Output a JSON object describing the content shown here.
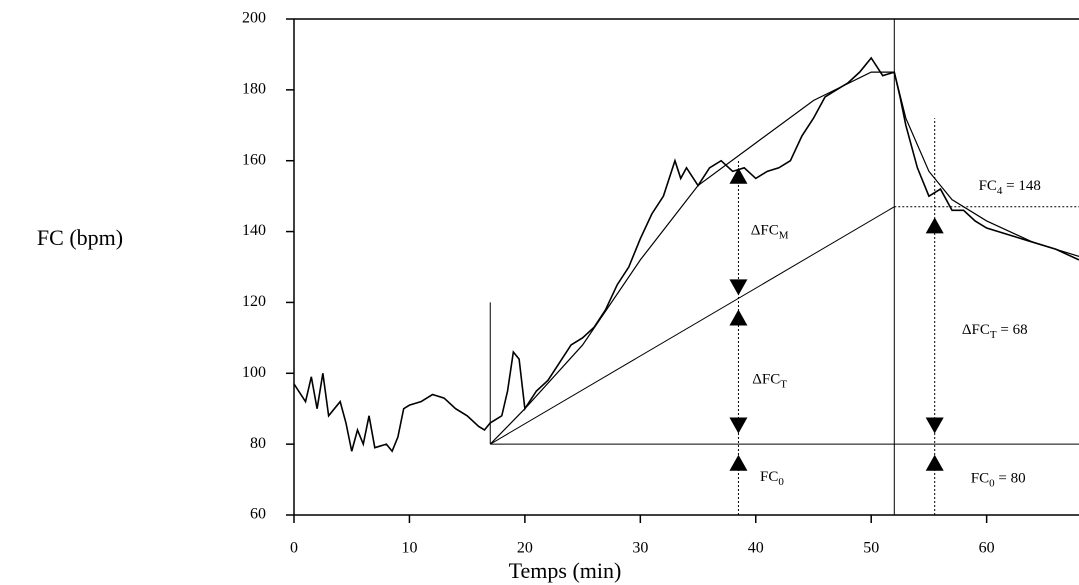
{
  "chart_data": {
    "type": "line",
    "xlabel": "Temps (min)",
    "ylabel": "FC (bpm)",
    "xlim": [
      0,
      68
    ],
    "xticks": [
      0,
      10,
      20,
      30,
      40,
      50,
      60
    ],
    "ylim": [
      60,
      200
    ],
    "yticks": [
      60,
      80,
      100,
      120,
      140,
      160,
      180,
      200
    ],
    "grid": false,
    "series": [
      {
        "name": "FC",
        "color": "#000000",
        "x": [
          0,
          1,
          1.5,
          2,
          2.5,
          3,
          4,
          4.5,
          5,
          5.5,
          6,
          6.5,
          7,
          8,
          8.5,
          9,
          9.5,
          10,
          11,
          12,
          13,
          14,
          15,
          16,
          16.5,
          17,
          18,
          18.5,
          19,
          19.5,
          20,
          21,
          22,
          23,
          24,
          25,
          26,
          27,
          28,
          29,
          30,
          31,
          32,
          33,
          33.5,
          34,
          35,
          36,
          37,
          38,
          39,
          40,
          41,
          42,
          43,
          44,
          45,
          46,
          47,
          48,
          49,
          50,
          51,
          52,
          52.5,
          53,
          54,
          55,
          56,
          57,
          58,
          59,
          60,
          62,
          64,
          66,
          68
        ],
        "values": [
          97,
          92,
          99,
          90,
          100,
          88,
          92,
          86,
          78,
          84,
          80,
          88,
          79,
          80,
          78,
          82,
          90,
          91,
          92,
          94,
          93,
          90,
          88,
          85,
          84,
          86,
          88,
          95,
          106,
          104,
          90,
          95,
          98,
          103,
          108,
          110,
          113,
          118,
          125,
          130,
          138,
          145,
          150,
          160,
          155,
          158,
          153,
          158,
          160,
          157,
          158,
          155,
          157,
          158,
          160,
          167,
          172,
          178,
          180,
          182,
          185,
          189,
          184,
          185,
          178,
          170,
          158,
          150,
          152,
          146,
          146,
          143,
          141,
          139,
          137,
          135,
          132
        ]
      },
      {
        "name": "fit",
        "color": "#000000",
        "x": [
          17,
          20,
          25,
          30,
          35,
          40,
          45,
          50,
          52,
          53,
          55,
          57,
          60,
          64,
          68
        ],
        "values": [
          80,
          90,
          108,
          132,
          153,
          165,
          177,
          185,
          185,
          172,
          157,
          149,
          143,
          137,
          133
        ]
      }
    ],
    "lines": [
      {
        "x": [
          17,
          52
        ],
        "y": [
          80,
          147
        ],
        "dash": false
      },
      {
        "x": [
          17,
          68
        ],
        "y": [
          80,
          80
        ],
        "dash": false
      },
      {
        "x": [
          52,
          68
        ],
        "y": [
          147,
          147
        ],
        "dash": true
      },
      {
        "x": [
          17,
          17
        ],
        "y": [
          80,
          120
        ],
        "dash": false
      },
      {
        "x": [
          52,
          52
        ],
        "y": [
          60,
          200
        ],
        "dash": false
      },
      {
        "x": [
          38.5,
          38.5
        ],
        "y": [
          60,
          160
        ],
        "dash": true
      },
      {
        "x": [
          55.5,
          55.5
        ],
        "y": [
          60,
          172
        ],
        "dash": true
      }
    ],
    "markers": [
      {
        "x": 38.5,
        "y": 158,
        "dir": "up"
      },
      {
        "x": 38.5,
        "y": 122,
        "dir": "down"
      },
      {
        "x": 38.5,
        "y": 118,
        "dir": "up"
      },
      {
        "x": 38.5,
        "y": 83,
        "dir": "down"
      },
      {
        "x": 38.5,
        "y": 77,
        "dir": "up"
      },
      {
        "x": 55.5,
        "y": 144,
        "dir": "up"
      },
      {
        "x": 55.5,
        "y": 83,
        "dir": "down"
      },
      {
        "x": 55.5,
        "y": 77,
        "dir": "up"
      }
    ],
    "annotations": [
      {
        "x": 41.2,
        "y": 140,
        "parts": [
          {
            "text": "ΔFC"
          },
          {
            "text": "M",
            "sub": true
          }
        ]
      },
      {
        "x": 41.2,
        "y": 98,
        "parts": [
          {
            "text": "ΔFC"
          },
          {
            "text": "T",
            "sub": true
          }
        ]
      },
      {
        "x": 41.4,
        "y": 70.4,
        "parts": [
          {
            "text": "FC"
          },
          {
            "text": "0",
            "sub": true
          }
        ]
      },
      {
        "x": 62,
        "y": 152.6,
        "parts": [
          {
            "text": "FC"
          },
          {
            "text": "4",
            "sub": true
          },
          {
            "text": " = 148"
          }
        ]
      },
      {
        "x": 60.7,
        "y": 112,
        "parts": [
          {
            "text": "ΔFC"
          },
          {
            "text": "T",
            "sub": true
          },
          {
            "text": " = 68"
          }
        ]
      },
      {
        "x": 61,
        "y": 70,
        "parts": [
          {
            "text": "FC"
          },
          {
            "text": "0",
            "sub": true
          },
          {
            "text": " = 80"
          }
        ]
      }
    ]
  }
}
